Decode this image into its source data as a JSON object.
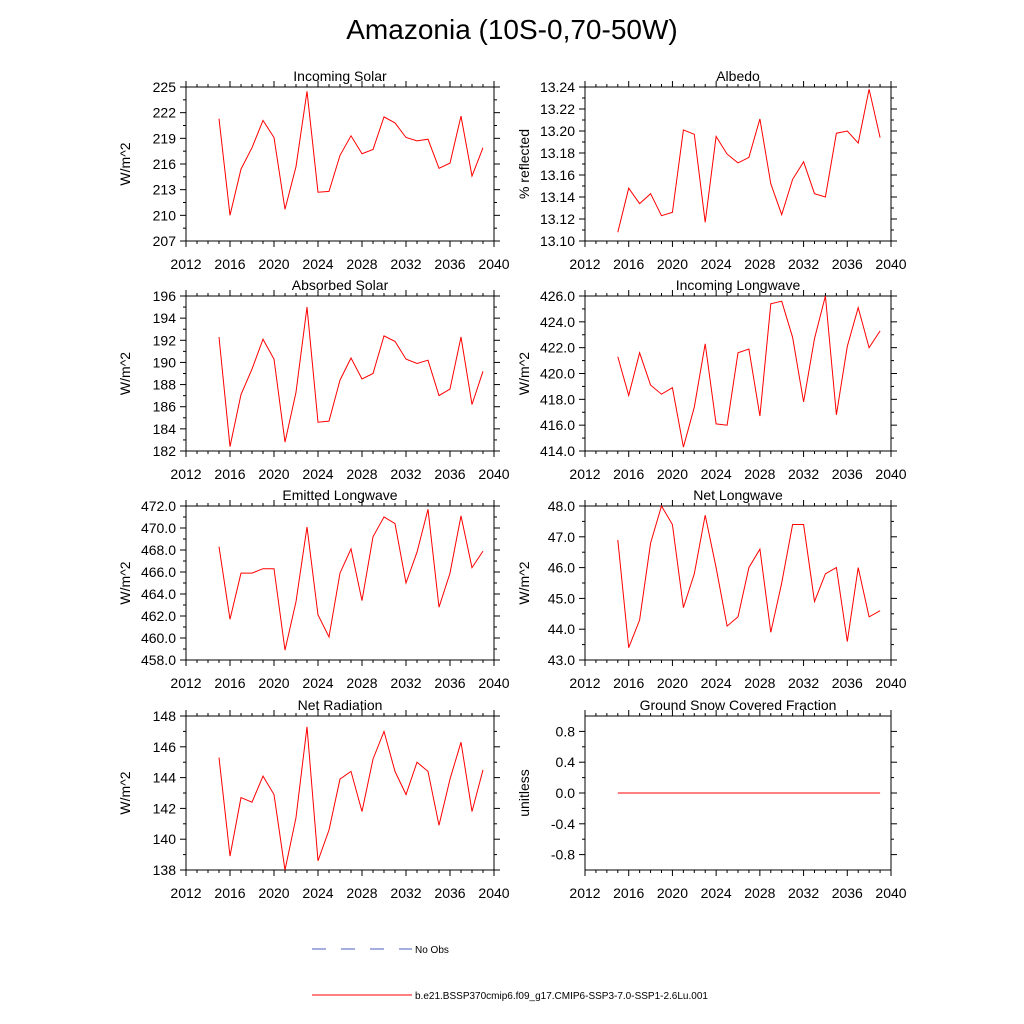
{
  "title": "Amazonia (10S-0,70-50W)",
  "legend": {
    "obs_label": "No Obs",
    "model_label": "b.e21.BSSP370cmip6.f09_g17.CMIP6-SSP3-7.0-SSP1-2.6Lu.001",
    "obs_color": "#4a5fc1",
    "model_color": "#ff0000"
  },
  "chart_data": [
    {
      "type": "line",
      "title": "Incoming Solar",
      "ylabel": "W/m^2",
      "xlim": [
        2012,
        2040
      ],
      "ylim": [
        207,
        225
      ],
      "xticks": [
        2012,
        2016,
        2020,
        2024,
        2028,
        2032,
        2036,
        2040
      ],
      "yticks": [
        207,
        210,
        213,
        216,
        219,
        222,
        225
      ],
      "ytick_labels": [
        "207",
        "210",
        "213",
        "216",
        "219",
        "222",
        "225"
      ],
      "x": [
        2015,
        2016,
        2017,
        2018,
        2019,
        2020,
        2021,
        2022,
        2023,
        2024,
        2025,
        2026,
        2027,
        2028,
        2029,
        2030,
        2031,
        2032,
        2033,
        2034,
        2035,
        2036,
        2037,
        2038,
        2039
      ],
      "y": [
        221.3,
        210.0,
        215.4,
        217.9,
        221.1,
        219.1,
        210.7,
        215.7,
        224.5,
        212.7,
        212.8,
        217.0,
        219.3,
        217.2,
        217.7,
        221.5,
        220.8,
        219.1,
        218.7,
        218.9,
        215.5,
        216.1,
        221.6,
        214.6,
        217.9
      ],
      "color": "#ff0000"
    },
    {
      "type": "line",
      "title": "Albedo",
      "ylabel": "% reflected",
      "xlim": [
        2012,
        2040
      ],
      "ylim": [
        13.1,
        13.24
      ],
      "xticks": [
        2012,
        2016,
        2020,
        2024,
        2028,
        2032,
        2036,
        2040
      ],
      "yticks": [
        13.1,
        13.12,
        13.14,
        13.16,
        13.18,
        13.2,
        13.22,
        13.24
      ],
      "ytick_labels": [
        "13.10",
        "13.12",
        "13.14",
        "13.16",
        "13.18",
        "13.20",
        "13.22",
        "13.24"
      ],
      "x": [
        2015,
        2016,
        2017,
        2018,
        2019,
        2020,
        2021,
        2022,
        2023,
        2024,
        2025,
        2026,
        2027,
        2028,
        2029,
        2030,
        2031,
        2032,
        2033,
        2034,
        2035,
        2036,
        2037,
        2038,
        2039
      ],
      "y": [
        13.108,
        13.148,
        13.134,
        13.143,
        13.123,
        13.126,
        13.201,
        13.197,
        13.117,
        13.195,
        13.179,
        13.171,
        13.176,
        13.211,
        13.152,
        13.124,
        13.156,
        13.172,
        13.143,
        13.14,
        13.198,
        13.2,
        13.189,
        13.238,
        13.194
      ],
      "color": "#ff0000"
    },
    {
      "type": "line",
      "title": "Absorbed Solar",
      "ylabel": "W/m^2",
      "xlim": [
        2012,
        2040
      ],
      "ylim": [
        182,
        196
      ],
      "xticks": [
        2012,
        2016,
        2020,
        2024,
        2028,
        2032,
        2036,
        2040
      ],
      "yticks": [
        182,
        184,
        186,
        188,
        190,
        192,
        194,
        196
      ],
      "ytick_labels": [
        "182",
        "184",
        "186",
        "188",
        "190",
        "192",
        "194",
        "196"
      ],
      "x": [
        2015,
        2016,
        2017,
        2018,
        2019,
        2020,
        2021,
        2022,
        2023,
        2024,
        2025,
        2026,
        2027,
        2028,
        2029,
        2030,
        2031,
        2032,
        2033,
        2034,
        2035,
        2036,
        2037,
        2038,
        2039
      ],
      "y": [
        192.3,
        182.4,
        187.1,
        189.4,
        192.1,
        190.3,
        182.8,
        187.3,
        195.0,
        184.6,
        184.7,
        188.4,
        190.4,
        188.5,
        189.0,
        192.4,
        191.9,
        190.3,
        189.9,
        190.2,
        187.0,
        187.6,
        192.3,
        186.2,
        189.2
      ],
      "color": "#ff0000"
    },
    {
      "type": "line",
      "title": "Incoming Longwave",
      "ylabel": "W/m^2",
      "xlim": [
        2012,
        2040
      ],
      "ylim": [
        414,
        426
      ],
      "xticks": [
        2012,
        2016,
        2020,
        2024,
        2028,
        2032,
        2036,
        2040
      ],
      "yticks": [
        414,
        416,
        418,
        420,
        422,
        424,
        426
      ],
      "ytick_labels": [
        "414.0",
        "416.0",
        "418.0",
        "420.0",
        "422.0",
        "424.0",
        "426.0"
      ],
      "x": [
        2015,
        2016,
        2017,
        2018,
        2019,
        2020,
        2021,
        2022,
        2023,
        2024,
        2025,
        2026,
        2027,
        2028,
        2029,
        2030,
        2031,
        2032,
        2033,
        2034,
        2035,
        2036,
        2037,
        2038,
        2039
      ],
      "y": [
        421.3,
        418.3,
        421.6,
        419.1,
        418.4,
        418.9,
        414.3,
        417.4,
        422.3,
        416.1,
        416.0,
        421.6,
        421.9,
        416.7,
        425.4,
        425.6,
        422.8,
        417.8,
        422.7,
        426.0,
        416.8,
        422.1,
        425.1,
        422.0,
        423.3
      ],
      "color": "#ff0000"
    },
    {
      "type": "line",
      "title": "Emitted Longwave",
      "ylabel": "W/m^2",
      "xlim": [
        2012,
        2040
      ],
      "ylim": [
        458,
        472
      ],
      "xticks": [
        2012,
        2016,
        2020,
        2024,
        2028,
        2032,
        2036,
        2040
      ],
      "yticks": [
        458,
        460,
        462,
        464,
        466,
        468,
        470,
        472
      ],
      "ytick_labels": [
        "458.0",
        "460.0",
        "462.0",
        "464.0",
        "466.0",
        "468.0",
        "470.0",
        "472.0"
      ],
      "x": [
        2015,
        2016,
        2017,
        2018,
        2019,
        2020,
        2021,
        2022,
        2023,
        2024,
        2025,
        2026,
        2027,
        2028,
        2029,
        2030,
        2031,
        2032,
        2033,
        2034,
        2035,
        2036,
        2037,
        2038,
        2039
      ],
      "y": [
        468.3,
        461.7,
        465.9,
        465.9,
        466.3,
        466.3,
        458.9,
        463.3,
        470.1,
        462.1,
        460.1,
        465.9,
        468.1,
        463.4,
        469.2,
        471.0,
        470.4,
        465.0,
        467.8,
        471.7,
        462.8,
        465.9,
        471.1,
        466.4,
        467.9
      ],
      "color": "#ff0000"
    },
    {
      "type": "line",
      "title": "Net Longwave",
      "ylabel": "W/m^2",
      "xlim": [
        2012,
        2040
      ],
      "ylim": [
        43,
        48
      ],
      "xticks": [
        2012,
        2016,
        2020,
        2024,
        2028,
        2032,
        2036,
        2040
      ],
      "yticks": [
        43,
        44,
        45,
        46,
        47,
        48
      ],
      "ytick_labels": [
        "43.0",
        "44.0",
        "45.0",
        "46.0",
        "47.0",
        "48.0"
      ],
      "x": [
        2015,
        2016,
        2017,
        2018,
        2019,
        2020,
        2021,
        2022,
        2023,
        2024,
        2025,
        2026,
        2027,
        2028,
        2029,
        2030,
        2031,
        2032,
        2033,
        2034,
        2035,
        2036,
        2037,
        2038,
        2039
      ],
      "y": [
        46.9,
        43.4,
        44.3,
        46.8,
        48.0,
        47.4,
        44.7,
        45.8,
        47.7,
        46.0,
        44.1,
        44.4,
        46.0,
        46.6,
        43.9,
        45.5,
        47.4,
        47.4,
        44.9,
        45.8,
        46.0,
        43.6,
        46.0,
        44.4,
        44.6
      ],
      "color": "#ff0000"
    },
    {
      "type": "line",
      "title": "Net Radiation",
      "ylabel": "W/m^2",
      "xlim": [
        2012,
        2040
      ],
      "ylim": [
        138,
        148
      ],
      "xticks": [
        2012,
        2016,
        2020,
        2024,
        2028,
        2032,
        2036,
        2040
      ],
      "yticks": [
        138,
        140,
        142,
        144,
        146,
        148
      ],
      "ytick_labels": [
        "138",
        "140",
        "142",
        "144",
        "146",
        "148"
      ],
      "x": [
        2015,
        2016,
        2017,
        2018,
        2019,
        2020,
        2021,
        2022,
        2023,
        2024,
        2025,
        2026,
        2027,
        2028,
        2029,
        2030,
        2031,
        2032,
        2033,
        2034,
        2035,
        2036,
        2037,
        2038,
        2039
      ],
      "y": [
        145.3,
        138.9,
        142.7,
        142.4,
        144.1,
        142.9,
        138.0,
        141.4,
        147.3,
        138.6,
        140.6,
        143.9,
        144.4,
        141.8,
        145.2,
        147.0,
        144.4,
        142.9,
        145.0,
        144.4,
        140.9,
        143.9,
        146.3,
        141.8,
        144.5
      ],
      "color": "#ff0000"
    },
    {
      "type": "line",
      "title": "Ground Snow Covered Fraction",
      "ylabel": "unitless",
      "xlim": [
        2012,
        2040
      ],
      "ylim": [
        -1.0,
        1.0
      ],
      "xticks": [
        2012,
        2016,
        2020,
        2024,
        2028,
        2032,
        2036,
        2040
      ],
      "yticks": [
        -0.8,
        -0.4,
        0.0,
        0.4,
        0.8
      ],
      "ytick_labels": [
        "-0.8",
        "-0.4",
        "0.0",
        "0.4",
        "0.8"
      ],
      "x": [
        2015,
        2016,
        2017,
        2018,
        2019,
        2020,
        2021,
        2022,
        2023,
        2024,
        2025,
        2026,
        2027,
        2028,
        2029,
        2030,
        2031,
        2032,
        2033,
        2034,
        2035,
        2036,
        2037,
        2038,
        2039
      ],
      "y": [
        0,
        0,
        0,
        0,
        0,
        0,
        0,
        0,
        0,
        0,
        0,
        0,
        0,
        0,
        0,
        0,
        0,
        0,
        0,
        0,
        0,
        0,
        0,
        0,
        0
      ],
      "color": "#ff0000"
    }
  ]
}
